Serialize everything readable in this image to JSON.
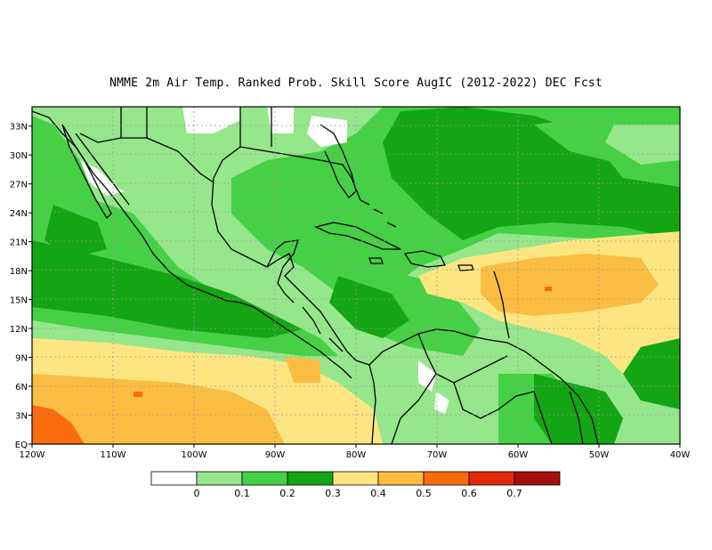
{
  "title": "NMME  2m Air Temp. Ranked Prob. Skill Score AugIC (2012-2022) DEC Fcst",
  "chart_data": {
    "type": "heatmap",
    "title": "NMME  2m Air Temp. Ranked Prob. Skill Score AugIC (2012-2022) DEC Fcst",
    "xlim": [
      -120,
      -40
    ],
    "ylim": [
      0,
      35
    ],
    "grid": true,
    "x_ticks": [
      "120W",
      "110W",
      "100W",
      "90W",
      "80W",
      "70W",
      "60W",
      "50W",
      "40W"
    ],
    "y_ticks": [
      "EQ",
      "3N",
      "6N",
      "9N",
      "12N",
      "15N",
      "18N",
      "21N",
      "24N",
      "27N",
      "30N",
      "33N"
    ],
    "colorbar": {
      "placement": "bottom",
      "labels": [
        "0",
        "0.1",
        "0.2",
        "0.3",
        "0.4",
        "0.5",
        "0.6",
        "0.7"
      ],
      "colors": [
        "#ffffff",
        "#96e68c",
        "#46d046",
        "#14a514",
        "#fde682",
        "#fbbd41",
        "#f96b0c",
        "#e3290b",
        "#a50f0f"
      ]
    }
  },
  "colors": {
    "land_outline": "#000000",
    "grid": "#9a9a9a"
  }
}
